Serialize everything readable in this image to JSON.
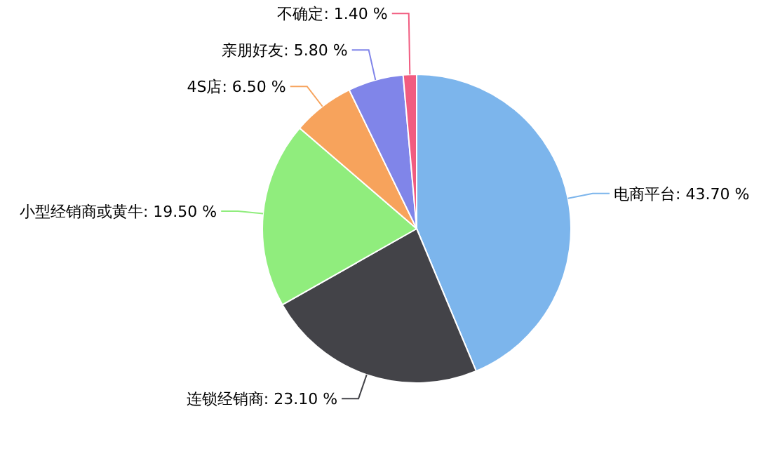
{
  "chart_data": {
    "type": "pie",
    "categories": [
      "电商平台",
      "连锁经销商",
      "小型经销商或黄牛",
      "4S店",
      "亲朋好友",
      "不确定"
    ],
    "values": [
      43.7,
      23.1,
      19.5,
      6.5,
      5.8,
      1.4
    ],
    "value_labels": [
      "43.70 %",
      "23.10 %",
      "19.50 %",
      "6.50 %",
      "5.80 %",
      "1.40 %"
    ],
    "colors": [
      "#7cb5ec",
      "#434348",
      "#90ed7d",
      "#f7a35c",
      "#8085e9",
      "#f15c80"
    ]
  }
}
